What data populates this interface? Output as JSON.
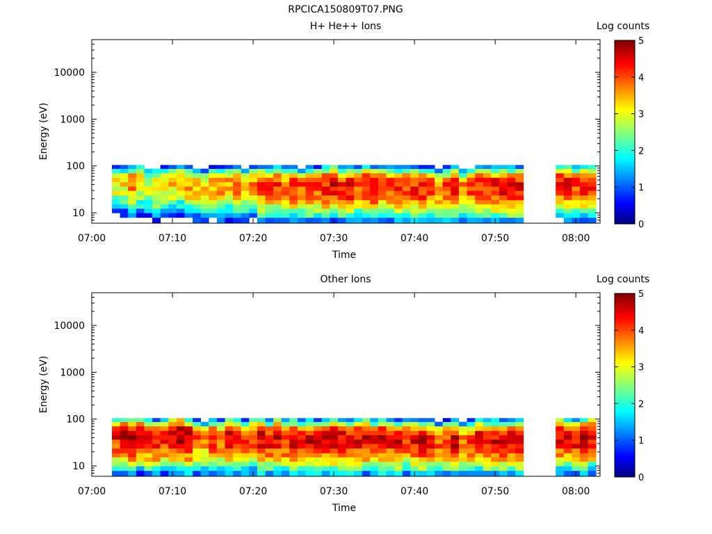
{
  "figure_title": "RPCICA150809T07.PNG",
  "colorbar": {
    "label": "Log counts",
    "ticks": [
      "0",
      "1",
      "2",
      "3",
      "4",
      "5"
    ],
    "range": [
      0,
      5
    ],
    "colormap": "jet"
  },
  "chart_data": [
    {
      "type": "heatmap",
      "title": "H+ He++ Ions",
      "xlabel": "Time",
      "ylabel": "Energy (eV)",
      "x_ticks": [
        "07:00",
        "07:10",
        "07:20",
        "07:30",
        "07:40",
        "07:50",
        "08:00"
      ],
      "y_ticks": [
        "10",
        "100",
        "1000",
        "10000"
      ],
      "y_scale": "log",
      "ylim": [
        6,
        50000
      ],
      "xlim": [
        "07:00",
        "08:03"
      ],
      "segments": [
        [
          "07:02:30",
          "07:53:30"
        ],
        [
          "07:57:30",
          "08:02:30"
        ]
      ],
      "energy_bins_eV": [
        7,
        9,
        11,
        14,
        17,
        21,
        27,
        33,
        41,
        51,
        63,
        80,
        96
      ],
      "time_columns": [
        "07:03",
        "07:04",
        "07:05",
        "07:06",
        "07:07",
        "07:08",
        "07:09",
        "07:10",
        "07:11",
        "07:12",
        "07:13",
        "07:14",
        "07:15",
        "07:16",
        "07:17",
        "07:18",
        "07:19",
        "07:20",
        "07:21",
        "07:22",
        "07:23",
        "07:24",
        "07:25",
        "07:26",
        "07:27",
        "07:28",
        "07:29",
        "07:30",
        "07:31",
        "07:32",
        "07:33",
        "07:34",
        "07:35",
        "07:36",
        "07:37",
        "07:38",
        "07:39",
        "07:40",
        "07:41",
        "07:42",
        "07:43",
        "07:44",
        "07:45",
        "07:46",
        "07:47",
        "07:48",
        "07:49",
        "07:50",
        "07:51",
        "07:52",
        "07:53",
        "07:58",
        "07:59",
        "08:00",
        "08:01",
        "08:02"
      ],
      "peak_log_counts": [
        3.1,
        3.2,
        3.8,
        3.3,
        3.0,
        3.4,
        3.2,
        3.4,
        3.3,
        3.6,
        3.5,
        3.3,
        3.6,
        3.7,
        3.5,
        3.9,
        3.4,
        3.6,
        4.2,
        4.0,
        4.1,
        3.9,
        4.3,
        4.0,
        4.2,
        4.1,
        4.3,
        4.5,
        4.2,
        4.4,
        4.1,
        4.3,
        4.4,
        4.2,
        4.1,
        4.3,
        4.0,
        4.2,
        4.3,
        4.1,
        3.9,
        4.0,
        4.4,
        3.8,
        4.0,
        4.2,
        4.3,
        4.4,
        4.4,
        4.4,
        4.4,
        4.2,
        4.4,
        4.1,
        4.3,
        4.2
      ],
      "peak_energy_eV": [
        45,
        48,
        45,
        50,
        42,
        40,
        45,
        48,
        50,
        45,
        40,
        38,
        42,
        40,
        45,
        42,
        40,
        45,
        42,
        40,
        45,
        40,
        42,
        38,
        40,
        40,
        42,
        45,
        40,
        40,
        42,
        45,
        40,
        42,
        40,
        38,
        42,
        40,
        38,
        40,
        35,
        38,
        40,
        35,
        38,
        42,
        40,
        40,
        40,
        40,
        40,
        48,
        45,
        42,
        45,
        48
      ]
    },
    {
      "type": "heatmap",
      "title": "Other Ions",
      "xlabel": "Time",
      "ylabel": "Energy (eV)",
      "x_ticks": [
        "07:00",
        "07:10",
        "07:20",
        "07:30",
        "07:40",
        "07:50",
        "08:00"
      ],
      "y_ticks": [
        "10",
        "100",
        "1000",
        "10000"
      ],
      "y_scale": "log",
      "ylim": [
        6,
        50000
      ],
      "xlim": [
        "07:00",
        "08:03"
      ],
      "segments": [
        [
          "07:02:30",
          "07:53:30"
        ],
        [
          "07:57:30",
          "08:02:30"
        ]
      ],
      "energy_bins_eV": [
        7,
        9,
        11,
        14,
        17,
        21,
        27,
        33,
        41,
        51,
        63,
        80,
        96
      ],
      "time_columns": [
        "07:03",
        "07:04",
        "07:05",
        "07:06",
        "07:07",
        "07:08",
        "07:09",
        "07:10",
        "07:11",
        "07:12",
        "07:13",
        "07:14",
        "07:15",
        "07:16",
        "07:17",
        "07:18",
        "07:19",
        "07:20",
        "07:21",
        "07:22",
        "07:23",
        "07:24",
        "07:25",
        "07:26",
        "07:27",
        "07:28",
        "07:29",
        "07:30",
        "07:31",
        "07:32",
        "07:33",
        "07:34",
        "07:35",
        "07:36",
        "07:37",
        "07:38",
        "07:39",
        "07:40",
        "07:41",
        "07:42",
        "07:43",
        "07:44",
        "07:45",
        "07:46",
        "07:47",
        "07:48",
        "07:49",
        "07:50",
        "07:51",
        "07:52",
        "07:53",
        "07:58",
        "07:59",
        "08:00",
        "08:01",
        "08:02"
      ],
      "peak_log_counts": [
        4.3,
        4.6,
        4.8,
        4.5,
        4.4,
        4.4,
        4.3,
        4.7,
        4.9,
        4.7,
        3.9,
        3.7,
        4.2,
        4.0,
        4.5,
        4.3,
        4.1,
        4.2,
        4.6,
        4.4,
        4.5,
        4.3,
        4.6,
        4.4,
        4.5,
        4.4,
        4.5,
        4.8,
        4.6,
        4.4,
        4.5,
        4.6,
        4.3,
        4.6,
        4.4,
        4.5,
        4.2,
        4.4,
        4.5,
        4.3,
        4.0,
        4.2,
        4.6,
        3.9,
        4.2,
        4.4,
        4.5,
        4.5,
        4.5,
        4.5,
        4.5,
        4.6,
        4.5,
        4.4,
        4.6,
        4.5
      ],
      "peak_energy_eV": [
        45,
        48,
        45,
        50,
        42,
        40,
        45,
        48,
        50,
        45,
        40,
        38,
        42,
        40,
        45,
        42,
        40,
        45,
        42,
        40,
        45,
        40,
        42,
        38,
        40,
        40,
        42,
        45,
        40,
        40,
        42,
        45,
        40,
        42,
        40,
        38,
        42,
        40,
        38,
        40,
        35,
        38,
        40,
        35,
        38,
        42,
        40,
        40,
        40,
        40,
        40,
        48,
        45,
        42,
        45,
        48
      ]
    }
  ]
}
